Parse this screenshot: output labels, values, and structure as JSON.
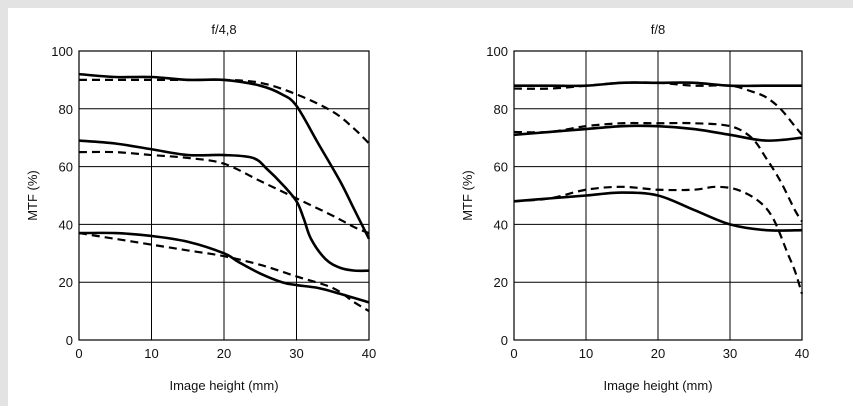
{
  "chart_data": [
    {
      "type": "line",
      "title": "f/4,8",
      "xlabel": "Image height (mm)",
      "ylabel": "MTF (%)",
      "xlim": [
        0,
        40
      ],
      "ylim": [
        0,
        100
      ],
      "xticks": [
        0,
        10,
        20,
        30,
        40
      ],
      "yticks": [
        0,
        20,
        40,
        60,
        80,
        100
      ],
      "grid": true,
      "series": [
        {
          "style": "solid",
          "x": [
            0,
            5,
            10,
            15,
            20,
            25,
            28,
            30,
            33,
            36,
            38,
            40
          ],
          "y": [
            92,
            91,
            91,
            90,
            90,
            88,
            85,
            81,
            68,
            55,
            45,
            35
          ]
        },
        {
          "style": "dashed",
          "x": [
            0,
            5,
            10,
            15,
            20,
            25,
            30,
            35,
            38,
            40
          ],
          "y": [
            90,
            90,
            90,
            90,
            90,
            89,
            85,
            79,
            73,
            68
          ]
        },
        {
          "style": "solid",
          "x": [
            0,
            5,
            10,
            15,
            20,
            24,
            26,
            28,
            30,
            31,
            32,
            34,
            36,
            38,
            40
          ],
          "y": [
            69,
            68,
            66,
            64,
            64,
            63,
            59,
            54,
            48,
            42,
            35,
            28,
            25,
            24,
            24
          ]
        },
        {
          "style": "dashed",
          "x": [
            0,
            5,
            10,
            15,
            20,
            25,
            30,
            35,
            38,
            40
          ],
          "y": [
            65,
            65,
            64,
            63,
            61,
            55,
            49,
            43,
            39,
            37
          ]
        },
        {
          "style": "solid",
          "x": [
            0,
            5,
            10,
            15,
            20,
            22,
            25,
            28,
            30,
            33,
            36,
            40
          ],
          "y": [
            37,
            37,
            36,
            34,
            30,
            27,
            23,
            20,
            19,
            18,
            16,
            13
          ]
        },
        {
          "style": "dashed",
          "x": [
            0,
            5,
            10,
            15,
            20,
            25,
            30,
            35,
            38,
            40
          ],
          "y": [
            37,
            35,
            33,
            31,
            29,
            26,
            22,
            18,
            13,
            10
          ]
        }
      ]
    },
    {
      "type": "line",
      "title": "f/8",
      "xlabel": "Image height (mm)",
      "ylabel": "MTF (%)",
      "xlim": [
        0,
        40
      ],
      "ylim": [
        0,
        100
      ],
      "xticks": [
        0,
        10,
        20,
        30,
        40
      ],
      "yticks": [
        0,
        20,
        40,
        60,
        80,
        100
      ],
      "grid": true,
      "series": [
        {
          "style": "solid",
          "x": [
            0,
            5,
            10,
            15,
            20,
            25,
            30,
            35,
            40
          ],
          "y": [
            88,
            88,
            88,
            89,
            89,
            89,
            88,
            88,
            88
          ]
        },
        {
          "style": "dashed",
          "x": [
            0,
            5,
            10,
            15,
            20,
            25,
            30,
            33,
            35,
            37,
            39,
            40
          ],
          "y": [
            87,
            87,
            88,
            89,
            89,
            88,
            88,
            86,
            84,
            80,
            74,
            71
          ]
        },
        {
          "style": "solid",
          "x": [
            0,
            5,
            10,
            15,
            20,
            25,
            30,
            35,
            40
          ],
          "y": [
            71,
            72,
            73,
            74,
            74,
            73,
            71,
            69,
            70
          ]
        },
        {
          "style": "dashed",
          "x": [
            0,
            5,
            10,
            15,
            20,
            25,
            30,
            33,
            35,
            37,
            39,
            40
          ],
          "y": [
            72,
            72,
            74,
            75,
            75,
            75,
            74,
            70,
            63,
            55,
            45,
            41
          ]
        },
        {
          "style": "solid",
          "x": [
            0,
            5,
            10,
            15,
            20,
            25,
            30,
            35,
            40
          ],
          "y": [
            48,
            49,
            50,
            51,
            50,
            45,
            40,
            38,
            38
          ]
        },
        {
          "style": "dashed",
          "x": [
            0,
            5,
            10,
            15,
            20,
            25,
            28,
            31,
            34,
            36,
            38,
            39,
            40
          ],
          "y": [
            48,
            49,
            52,
            53,
            52,
            52,
            53,
            52,
            48,
            42,
            30,
            24,
            16
          ]
        }
      ]
    }
  ]
}
